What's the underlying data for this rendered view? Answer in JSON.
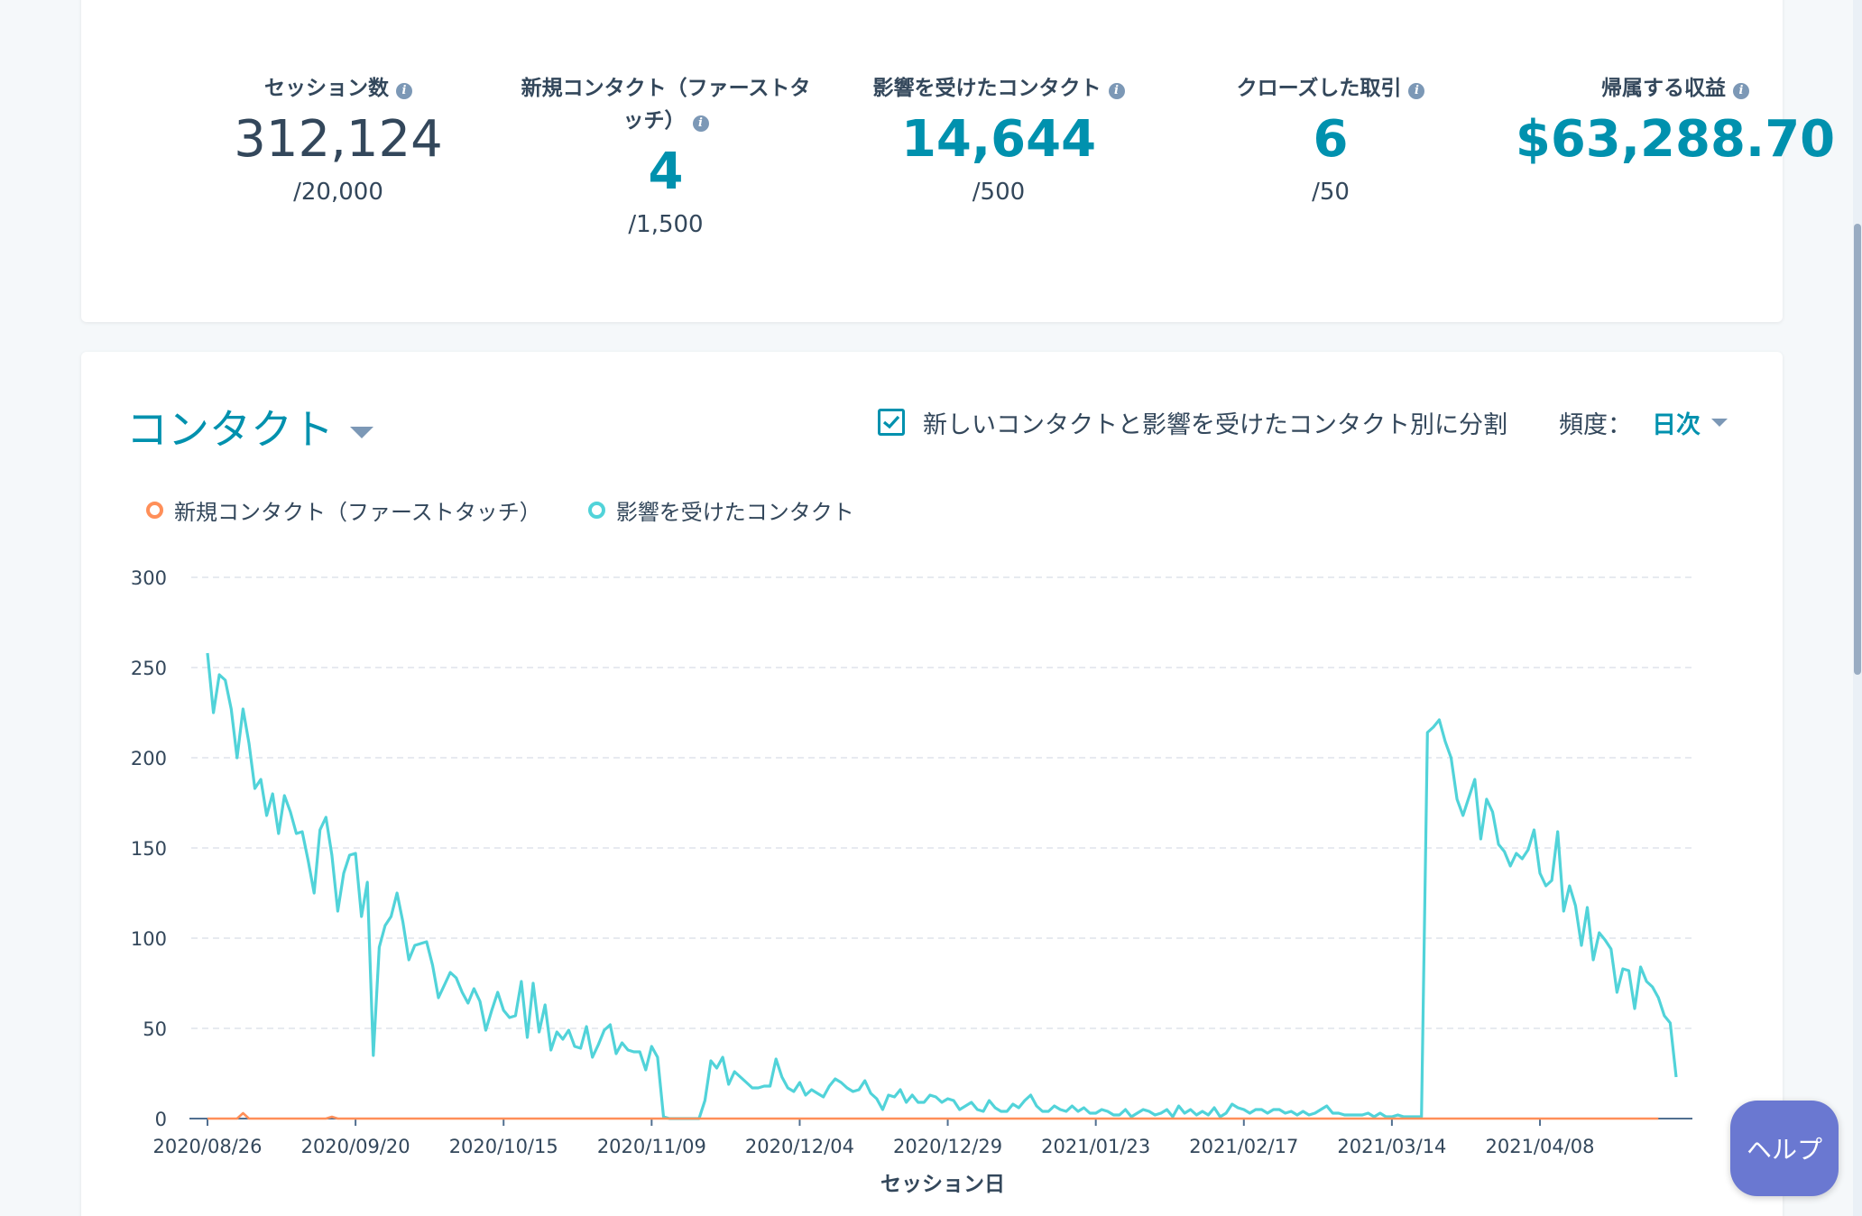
{
  "kpis": [
    {
      "label": "セッション数",
      "value": "312,124",
      "goal": "/20,000",
      "style": "plain"
    },
    {
      "label": "新規コンタクト（ファーストタッチ）",
      "value": "4",
      "goal": "/1,500",
      "style": "accent"
    },
    {
      "label": "影響を受けたコンタクト",
      "value": "14,644",
      "goal": "/500",
      "style": "accent"
    },
    {
      "label": "クローズした取引",
      "value": "6",
      "goal": "/50",
      "style": "accent"
    },
    {
      "label": "帰属する収益",
      "value": "$63,288.70",
      "goal": "",
      "style": "accent"
    }
  ],
  "chart_header": {
    "title": "コンタクト",
    "split_label": "新しいコンタクトと影響を受けたコンタクト別に分割",
    "split_checked": true,
    "frequency_label": "頻度：",
    "frequency_value": "日次"
  },
  "help": {
    "label": "ヘルプ"
  },
  "colors": {
    "accent": "#0091ae",
    "series_new": "#ff8f59",
    "series_influenced": "#51d3d9",
    "help": "#6a78d1"
  },
  "chart_data": {
    "type": "line",
    "xlabel": "セッション日",
    "ylim": [
      0,
      300
    ],
    "y_ticks": [
      0,
      50,
      100,
      150,
      200,
      250,
      300
    ],
    "x_ticks": [
      "2020/08/26",
      "2020/09/20",
      "2020/10/15",
      "2020/11/09",
      "2020/12/04",
      "2020/12/29",
      "2021/01/23",
      "2021/02/17",
      "2021/03/14",
      "2021/04/08"
    ],
    "grid": true,
    "legend_position": "top-left",
    "x_start": "2020/08/26",
    "series": [
      {
        "name": "新規コンタクト（ファーストタッチ）",
        "color": "#ff8f59",
        "points": [
          [
            0,
            0
          ],
          [
            5,
            0
          ],
          [
            6,
            3
          ],
          [
            7,
            0
          ],
          [
            20,
            0
          ],
          [
            21,
            1
          ],
          [
            22,
            0
          ],
          [
            245,
            0
          ]
        ]
      },
      {
        "name": "影響を受けたコンタクト",
        "color": "#51d3d9",
        "points": [
          [
            0,
            258
          ],
          [
            1,
            225
          ],
          [
            2,
            246
          ],
          [
            3,
            243
          ],
          [
            4,
            227
          ],
          [
            5,
            200
          ],
          [
            6,
            227
          ],
          [
            7,
            208
          ],
          [
            8,
            183
          ],
          [
            9,
            188
          ],
          [
            10,
            168
          ],
          [
            11,
            180
          ],
          [
            12,
            158
          ],
          [
            13,
            179
          ],
          [
            14,
            170
          ],
          [
            15,
            158
          ],
          [
            16,
            159
          ],
          [
            17,
            143
          ],
          [
            18,
            125
          ],
          [
            19,
            160
          ],
          [
            20,
            167
          ],
          [
            21,
            146
          ],
          [
            22,
            115
          ],
          [
            23,
            136
          ],
          [
            24,
            146
          ],
          [
            25,
            147
          ],
          [
            26,
            112
          ],
          [
            27,
            131
          ],
          [
            28,
            35
          ],
          [
            29,
            95
          ],
          [
            30,
            107
          ],
          [
            31,
            112
          ],
          [
            32,
            125
          ],
          [
            33,
            109
          ],
          [
            34,
            88
          ],
          [
            35,
            96
          ],
          [
            36,
            97
          ],
          [
            37,
            98
          ],
          [
            38,
            85
          ],
          [
            39,
            67
          ],
          [
            40,
            74
          ],
          [
            41,
            81
          ],
          [
            42,
            78
          ],
          [
            43,
            70
          ],
          [
            44,
            64
          ],
          [
            45,
            72
          ],
          [
            46,
            65
          ],
          [
            47,
            49
          ],
          [
            48,
            60
          ],
          [
            49,
            70
          ],
          [
            50,
            60
          ],
          [
            51,
            56
          ],
          [
            52,
            57
          ],
          [
            53,
            76
          ],
          [
            54,
            45
          ],
          [
            55,
            75
          ],
          [
            56,
            48
          ],
          [
            57,
            63
          ],
          [
            58,
            38
          ],
          [
            59,
            48
          ],
          [
            60,
            44
          ],
          [
            61,
            49
          ],
          [
            62,
            40
          ],
          [
            63,
            39
          ],
          [
            64,
            51
          ],
          [
            65,
            34
          ],
          [
            66,
            41
          ],
          [
            67,
            49
          ],
          [
            68,
            52
          ],
          [
            69,
            36
          ],
          [
            70,
            42
          ],
          [
            71,
            38
          ],
          [
            72,
            37
          ],
          [
            73,
            37
          ],
          [
            74,
            27
          ],
          [
            75,
            40
          ],
          [
            76,
            34
          ],
          [
            77,
            1
          ],
          [
            78,
            0
          ],
          [
            80,
            0
          ],
          [
            82,
            0
          ],
          [
            83,
            0
          ],
          [
            84,
            10
          ],
          [
            85,
            32
          ],
          [
            86,
            28
          ],
          [
            87,
            34
          ],
          [
            88,
            19
          ],
          [
            89,
            26
          ],
          [
            90,
            23
          ],
          [
            91,
            20
          ],
          [
            92,
            17
          ],
          [
            93,
            17
          ],
          [
            94,
            18
          ],
          [
            95,
            18
          ],
          [
            96,
            33
          ],
          [
            97,
            23
          ],
          [
            98,
            17
          ],
          [
            99,
            15
          ],
          [
            100,
            20
          ],
          [
            101,
            13
          ],
          [
            102,
            16
          ],
          [
            103,
            14
          ],
          [
            104,
            12
          ],
          [
            105,
            18
          ],
          [
            106,
            22
          ],
          [
            107,
            20
          ],
          [
            108,
            17
          ],
          [
            109,
            15
          ],
          [
            110,
            16
          ],
          [
            111,
            21
          ],
          [
            112,
            14
          ],
          [
            113,
            11
          ],
          [
            114,
            5
          ],
          [
            115,
            13
          ],
          [
            116,
            12
          ],
          [
            117,
            16
          ],
          [
            118,
            9
          ],
          [
            119,
            13
          ],
          [
            120,
            9
          ],
          [
            121,
            9
          ],
          [
            122,
            13
          ],
          [
            123,
            12
          ],
          [
            124,
            9
          ],
          [
            125,
            11
          ],
          [
            126,
            10
          ],
          [
            127,
            5
          ],
          [
            128,
            7
          ],
          [
            129,
            9
          ],
          [
            130,
            5
          ],
          [
            131,
            4
          ],
          [
            132,
            10
          ],
          [
            133,
            6
          ],
          [
            134,
            4
          ],
          [
            135,
            4
          ],
          [
            136,
            8
          ],
          [
            137,
            6
          ],
          [
            138,
            10
          ],
          [
            139,
            13
          ],
          [
            140,
            7
          ],
          [
            141,
            4
          ],
          [
            142,
            4
          ],
          [
            143,
            7
          ],
          [
            144,
            5
          ],
          [
            145,
            4
          ],
          [
            146,
            7
          ],
          [
            147,
            4
          ],
          [
            148,
            6
          ],
          [
            149,
            3
          ],
          [
            150,
            3
          ],
          [
            151,
            5
          ],
          [
            152,
            4
          ],
          [
            153,
            2
          ],
          [
            154,
            2
          ],
          [
            155,
            5
          ],
          [
            156,
            1
          ],
          [
            157,
            3
          ],
          [
            158,
            5
          ],
          [
            159,
            4
          ],
          [
            160,
            2
          ],
          [
            161,
            3
          ],
          [
            162,
            5
          ],
          [
            163,
            1
          ],
          [
            164,
            7
          ],
          [
            165,
            3
          ],
          [
            166,
            5
          ],
          [
            167,
            2
          ],
          [
            168,
            4
          ],
          [
            169,
            2
          ],
          [
            170,
            6
          ],
          [
            171,
            1
          ],
          [
            172,
            3
          ],
          [
            173,
            8
          ],
          [
            174,
            6
          ],
          [
            175,
            5
          ],
          [
            176,
            3
          ],
          [
            177,
            5
          ],
          [
            178,
            5
          ],
          [
            179,
            3
          ],
          [
            180,
            5
          ],
          [
            181,
            5
          ],
          [
            182,
            3
          ],
          [
            183,
            4
          ],
          [
            184,
            2
          ],
          [
            185,
            4
          ],
          [
            186,
            2
          ],
          [
            187,
            3
          ],
          [
            188,
            5
          ],
          [
            189,
            7
          ],
          [
            190,
            3
          ],
          [
            191,
            3
          ],
          [
            192,
            2
          ],
          [
            193,
            2
          ],
          [
            194,
            2
          ],
          [
            195,
            2
          ],
          [
            196,
            3
          ],
          [
            197,
            1
          ],
          [
            198,
            3
          ],
          [
            199,
            1
          ],
          [
            200,
            1
          ],
          [
            201,
            2
          ],
          [
            202,
            1
          ],
          [
            203,
            1
          ],
          [
            204,
            1
          ],
          [
            205,
            1
          ],
          [
            206,
            214
          ],
          [
            207,
            217
          ],
          [
            208,
            221
          ],
          [
            209,
            209
          ],
          [
            210,
            200
          ],
          [
            211,
            177
          ],
          [
            212,
            168
          ],
          [
            213,
            178
          ],
          [
            214,
            188
          ],
          [
            215,
            155
          ],
          [
            216,
            177
          ],
          [
            217,
            170
          ],
          [
            218,
            152
          ],
          [
            219,
            148
          ],
          [
            220,
            140
          ],
          [
            221,
            147
          ],
          [
            222,
            144
          ],
          [
            223,
            149
          ],
          [
            224,
            160
          ],
          [
            225,
            136
          ],
          [
            226,
            129
          ],
          [
            227,
            132
          ],
          [
            228,
            159
          ],
          [
            229,
            115
          ],
          [
            230,
            129
          ],
          [
            231,
            118
          ],
          [
            232,
            96
          ],
          [
            233,
            117
          ],
          [
            234,
            88
          ],
          [
            235,
            103
          ],
          [
            236,
            99
          ],
          [
            237,
            94
          ],
          [
            238,
            70
          ],
          [
            239,
            83
          ],
          [
            240,
            82
          ],
          [
            241,
            61
          ],
          [
            242,
            84
          ],
          [
            243,
            76
          ],
          [
            244,
            73
          ],
          [
            245,
            67
          ],
          [
            246,
            57
          ],
          [
            247,
            53
          ],
          [
            248,
            23
          ]
        ]
      }
    ]
  }
}
